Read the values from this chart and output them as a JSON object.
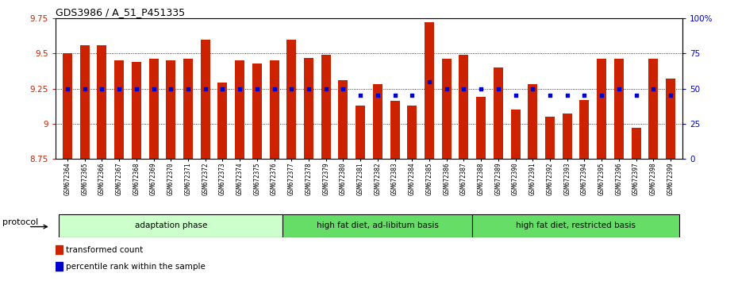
{
  "title": "GDS3986 / A_51_P451335",
  "samples": [
    "GSM672364",
    "GSM672365",
    "GSM672366",
    "GSM672367",
    "GSM672368",
    "GSM672369",
    "GSM672370",
    "GSM672371",
    "GSM672372",
    "GSM672373",
    "GSM672374",
    "GSM672375",
    "GSM672376",
    "GSM672377",
    "GSM672378",
    "GSM672379",
    "GSM672380",
    "GSM672381",
    "GSM672382",
    "GSM672383",
    "GSM672384",
    "GSM672385",
    "GSM672386",
    "GSM672387",
    "GSM672388",
    "GSM672389",
    "GSM672390",
    "GSM672391",
    "GSM672392",
    "GSM672393",
    "GSM672394",
    "GSM672395",
    "GSM672396",
    "GSM672397",
    "GSM672398",
    "GSM672399"
  ],
  "bar_values": [
    9.5,
    9.56,
    9.56,
    9.45,
    9.44,
    9.46,
    9.45,
    9.46,
    9.6,
    9.29,
    9.45,
    9.43,
    9.45,
    9.6,
    9.47,
    9.49,
    9.31,
    9.13,
    9.28,
    9.16,
    9.13,
    9.72,
    9.46,
    9.49,
    9.19,
    9.4,
    9.1,
    9.28,
    9.05,
    9.07,
    9.17,
    9.46,
    9.46,
    8.97,
    9.46,
    9.32
  ],
  "percentile_values": [
    50,
    50,
    50,
    50,
    50,
    50,
    50,
    50,
    50,
    50,
    50,
    50,
    50,
    50,
    50,
    50,
    50,
    45,
    45,
    45,
    45,
    55,
    50,
    50,
    50,
    50,
    45,
    50,
    45,
    45,
    45,
    45,
    50,
    45,
    50,
    45
  ],
  "ylim_left": [
    8.75,
    9.75
  ],
  "ylim_right": [
    0,
    100
  ],
  "yticks_left": [
    8.75,
    9.0,
    9.25,
    9.5,
    9.75
  ],
  "yticks_right": [
    0,
    25,
    50,
    75,
    100
  ],
  "bar_color": "#cc2200",
  "dot_color": "#0000cc",
  "bar_width": 0.55,
  "group_defs": [
    {
      "start": 0,
      "end": 12,
      "label": "adaptation phase",
      "color": "#ccffcc"
    },
    {
      "start": 13,
      "end": 23,
      "label": "high fat diet, ad-libitum basis",
      "color": "#66dd66"
    },
    {
      "start": 24,
      "end": 35,
      "label": "high fat diet, restricted basis",
      "color": "#66dd66"
    }
  ],
  "protocol_label": "protocol",
  "legend_items": [
    {
      "color": "#cc2200",
      "label": "transformed count"
    },
    {
      "color": "#0000cc",
      "label": "percentile rank within the sample"
    }
  ],
  "tick_label_color_left": "#cc2200",
  "tick_label_color_right": "#0000cc"
}
